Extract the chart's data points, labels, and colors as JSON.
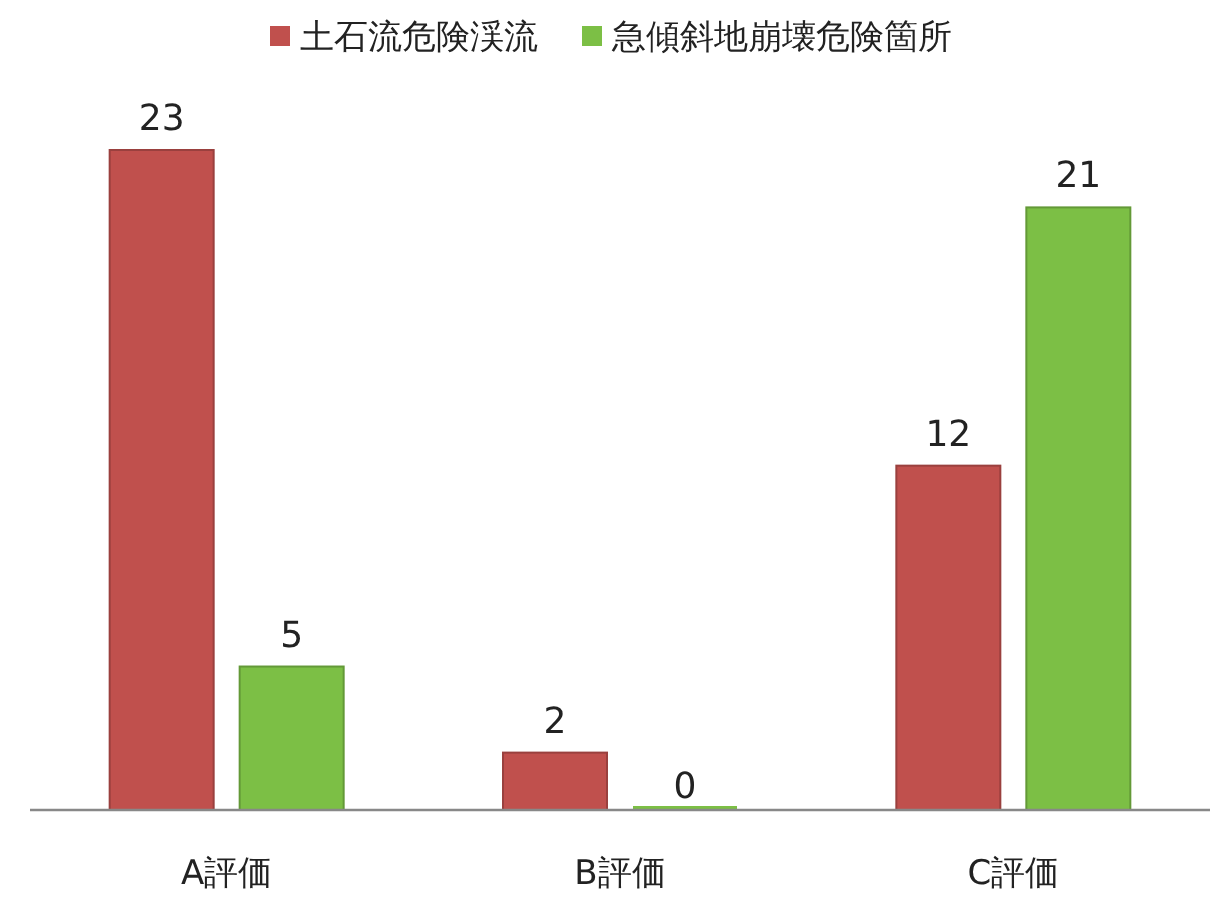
{
  "chart_data": {
    "type": "bar",
    "categories": [
      "A評価",
      "B評価",
      "C評価"
    ],
    "series": [
      {
        "name": "土石流危険渓流",
        "color": "#c0504d",
        "values": [
          23,
          2,
          12
        ]
      },
      {
        "name": "急傾斜地崩壊危険箇所",
        "color": "#7cbf45",
        "values": [
          5,
          0,
          21
        ]
      }
    ],
    "data_labels": true,
    "legend": "top",
    "grid": false
  }
}
